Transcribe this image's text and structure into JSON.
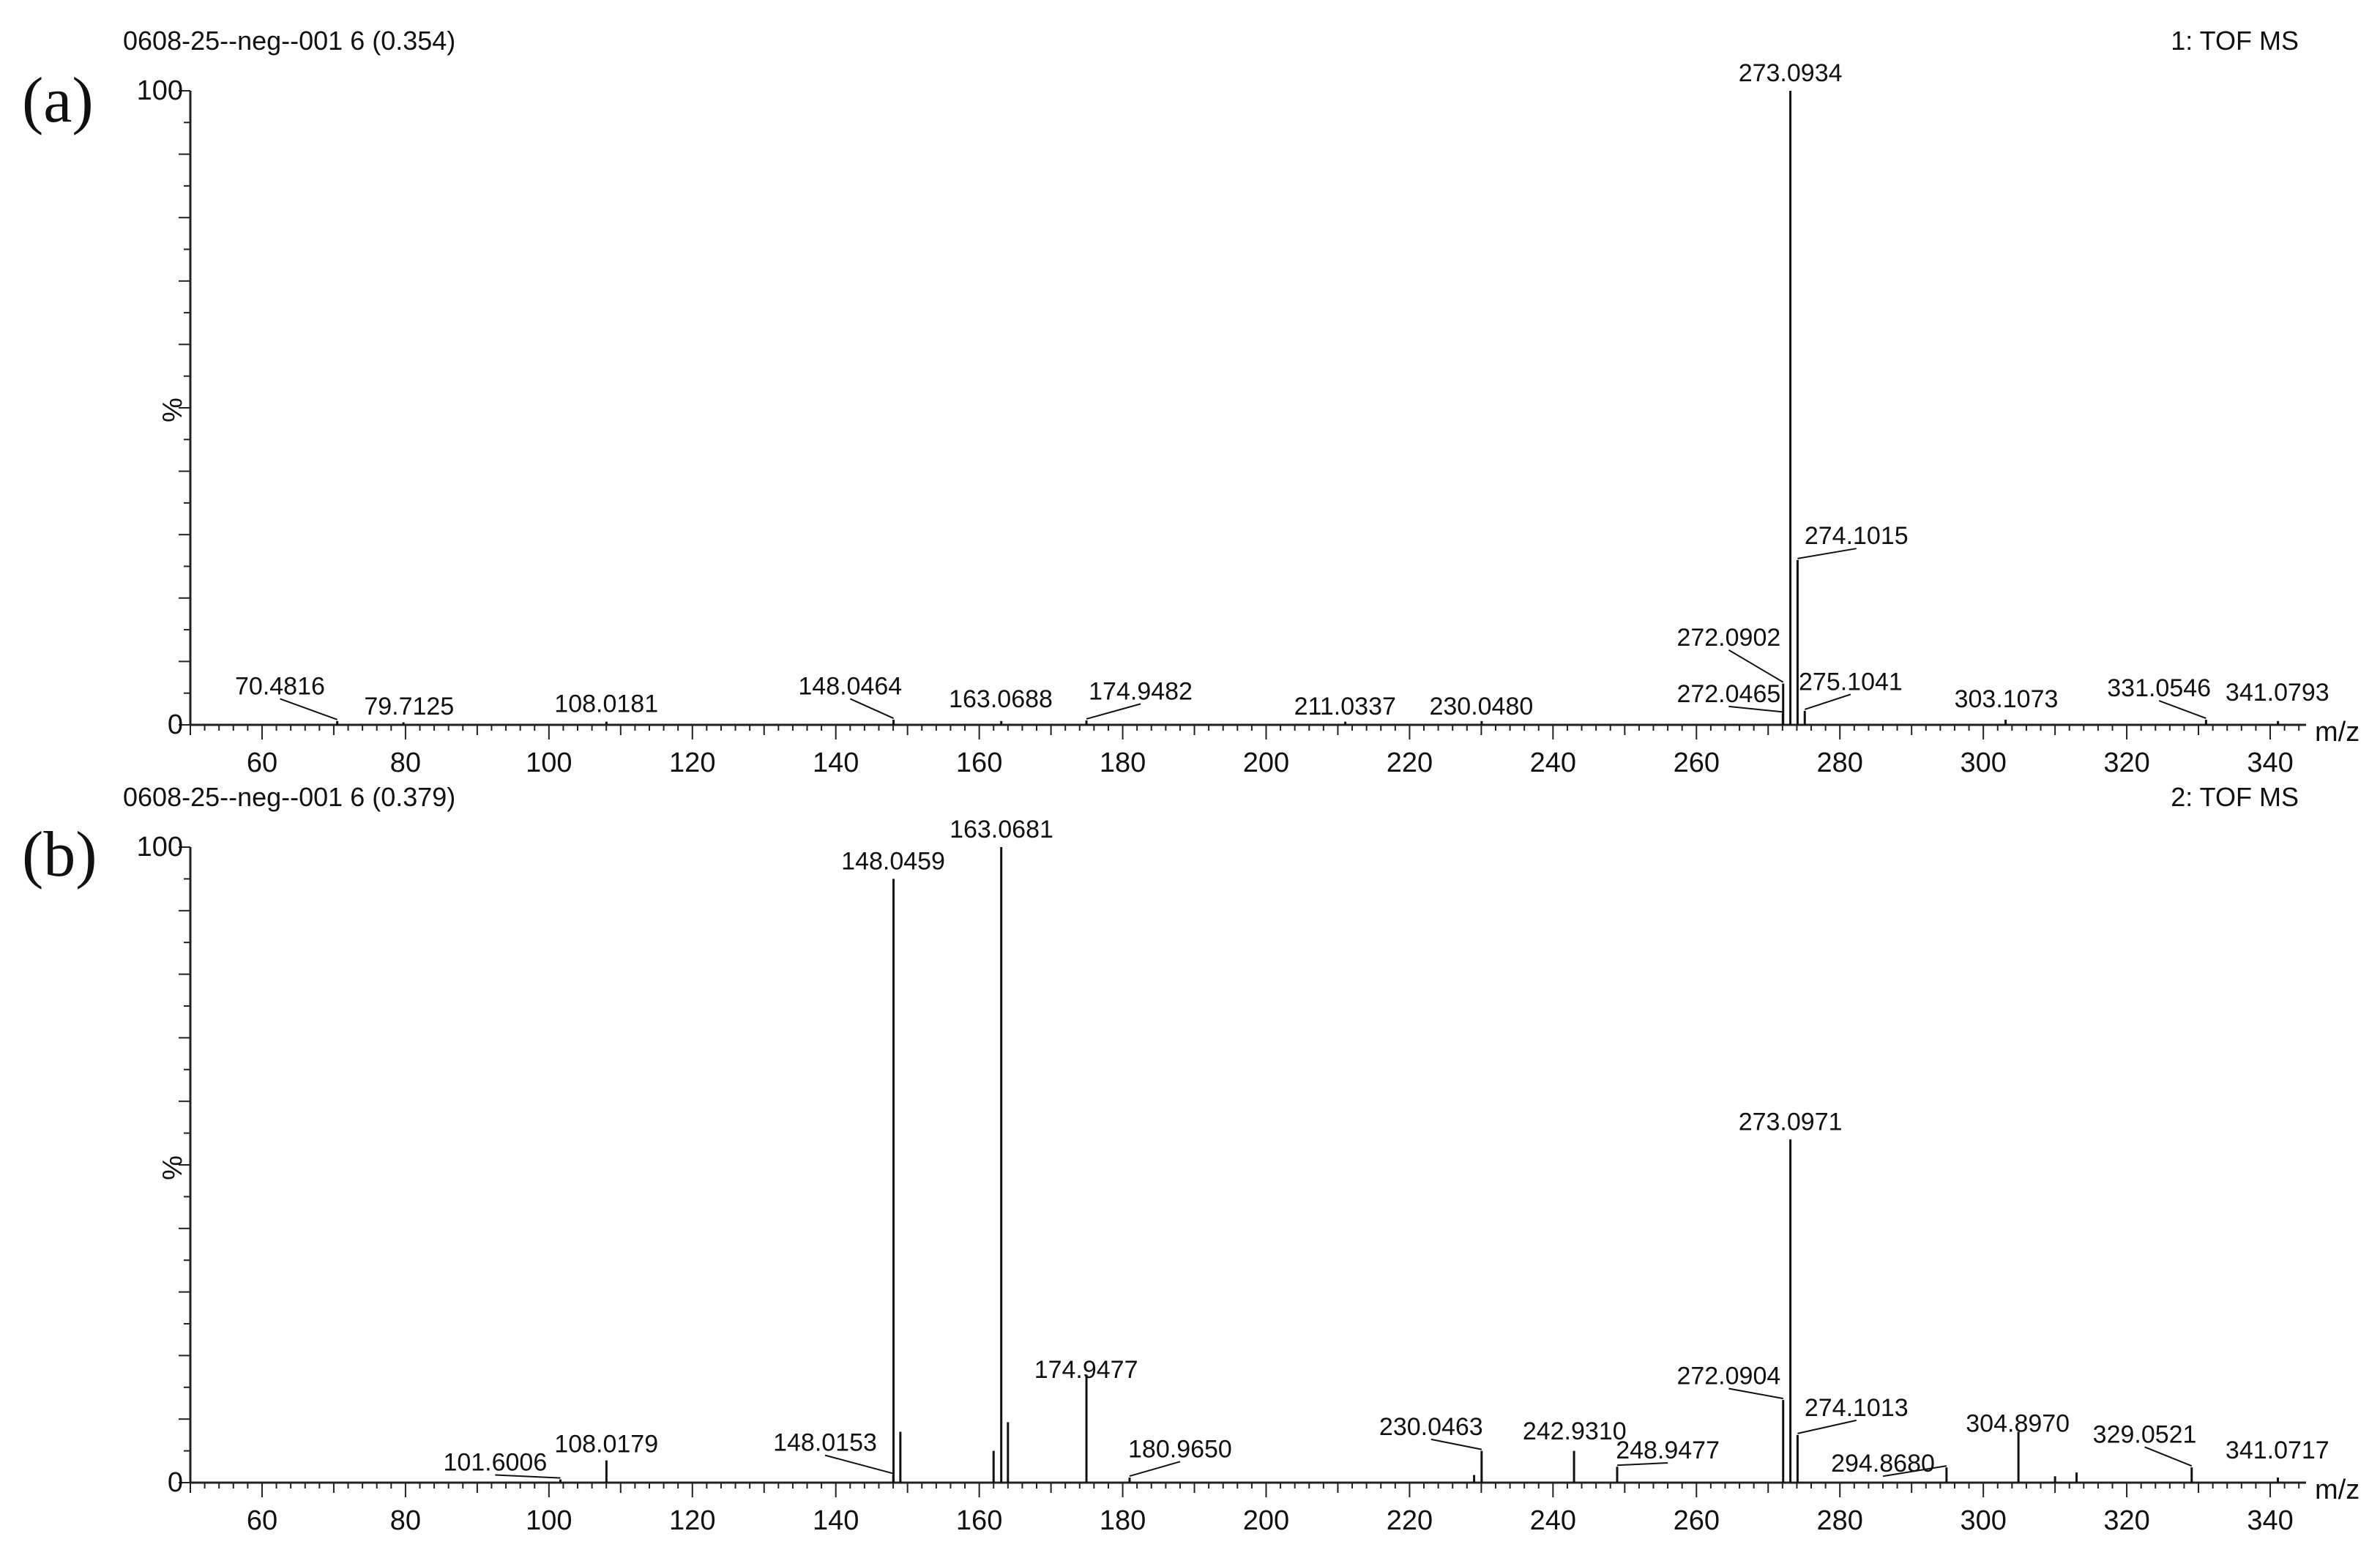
{
  "chart_data": [
    {
      "type": "bar",
      "panel_label": "(a)",
      "header_left": "0608-25--neg--001 6 (0.354)",
      "header_right": "1: TOF MS",
      "xlabel": "m/z",
      "ylabel": "%",
      "y_tick_labels": [
        "100",
        "0"
      ],
      "x_tick_labels": [
        "60",
        "80",
        "100",
        "120",
        "140",
        "160",
        "180",
        "200",
        "220",
        "240",
        "260",
        "280",
        "300",
        "320",
        "340"
      ],
      "xlim": [
        50,
        345
      ],
      "ylim": [
        0,
        100
      ],
      "grid": false,
      "peaks": [
        {
          "mz": 70.4816,
          "intensity": 0.6,
          "label": "70.4816",
          "label_mz": 62.5,
          "label_y": 4.8,
          "leader": true
        },
        {
          "mz": 79.7125,
          "intensity": 0.4,
          "label": "79.7125",
          "label_mz": 80.5,
          "label_y": 1.6,
          "leader": false
        },
        {
          "mz": 108.0181,
          "intensity": 0.5,
          "label": "108.0181",
          "label_mz": 108.0,
          "label_y": 2.0,
          "leader": false
        },
        {
          "mz": 148.0464,
          "intensity": 0.8,
          "label": "148.0464",
          "label_mz": 142.0,
          "label_y": 4.8,
          "leader": true
        },
        {
          "mz": 163.0688,
          "intensity": 0.6,
          "label": "163.0688",
          "label_mz": 163.0,
          "label_y": 2.8,
          "leader": false
        },
        {
          "mz": 174.9482,
          "intensity": 0.7,
          "label": "174.9482",
          "label_mz": 182.5,
          "label_y": 4.0,
          "leader": true
        },
        {
          "mz": 211.0337,
          "intensity": 0.5,
          "label": "211.0337",
          "label_mz": 211.0,
          "label_y": 1.6,
          "leader": false
        },
        {
          "mz": 230.048,
          "intensity": 0.6,
          "label": "230.0480",
          "label_mz": 230.0,
          "label_y": 1.6,
          "leader": false
        },
        {
          "mz": 272.0465,
          "intensity": 1.8,
          "label": "272.0465",
          "label_mz": 264.5,
          "label_y": 3.6,
          "leader": true
        },
        {
          "mz": 272.0902,
          "intensity": 6.5,
          "label": "272.0902",
          "label_mz": 264.5,
          "label_y": 12.5,
          "leader": true
        },
        {
          "mz": 273.0934,
          "intensity": 100,
          "label": "273.0934",
          "label_mz": 273.1,
          "label_y": 101.5,
          "leader": false
        },
        {
          "mz": 274.1015,
          "intensity": 26,
          "label": "274.1015",
          "label_mz": 282.3,
          "label_y": 28.5,
          "leader": true
        },
        {
          "mz": 275.1041,
          "intensity": 2.2,
          "label": "275.1041",
          "label_mz": 281.5,
          "label_y": 5.5,
          "leader": true
        },
        {
          "mz": 303.1073,
          "intensity": 0.8,
          "label": "303.1073",
          "label_mz": 303.2,
          "label_y": 2.8,
          "leader": false
        },
        {
          "mz": 331.0546,
          "intensity": 0.8,
          "label": "331.0546",
          "label_mz": 324.5,
          "label_y": 4.5,
          "leader": true
        },
        {
          "mz": 341.0793,
          "intensity": 0.6,
          "label": "341.0793",
          "label_mz": 341.0,
          "label_y": 3.8,
          "leader": false
        }
      ]
    },
    {
      "type": "bar",
      "panel_label": "(b)",
      "header_left": "0608-25--neg--001 6 (0.379)",
      "header_right": "2: TOF MS",
      "xlabel": "m/z",
      "ylabel": "%",
      "y_tick_labels": [
        "100",
        "0"
      ],
      "x_tick_labels": [
        "60",
        "80",
        "100",
        "120",
        "140",
        "160",
        "180",
        "200",
        "220",
        "240",
        "260",
        "280",
        "300",
        "320",
        "340"
      ],
      "xlim": [
        50,
        345
      ],
      "ylim": [
        0,
        100
      ],
      "grid": false,
      "peaks": [
        {
          "mz": 101.6006,
          "intensity": 0.5,
          "label": "101.6006",
          "label_mz": 92.5,
          "label_y": 1.9,
          "leader": true
        },
        {
          "mz": 108.0179,
          "intensity": 3.5,
          "label": "108.0179",
          "label_mz": 108.0,
          "label_y": 4.8,
          "leader": false
        },
        {
          "mz": 148.0153,
          "intensity": 1.2,
          "label": "148.0153",
          "label_mz": 138.5,
          "label_y": 5.0,
          "leader": true
        },
        {
          "mz": 148.0459,
          "intensity": 95,
          "label": "148.0459",
          "label_mz": 148.0,
          "label_y": 96.5,
          "leader": false
        },
        {
          "mz": 149.0,
          "intensity": 8,
          "label": "",
          "leader": false
        },
        {
          "mz": 162.0,
          "intensity": 5,
          "label": "",
          "leader": false
        },
        {
          "mz": 163.0681,
          "intensity": 100,
          "label": "163.0681",
          "label_mz": 163.1,
          "label_y": 101.5,
          "leader": false
        },
        {
          "mz": 164.0,
          "intensity": 9.5,
          "label": "",
          "leader": false
        },
        {
          "mz": 174.9477,
          "intensity": 17,
          "label": "174.9477",
          "label_mz": 174.9,
          "label_y": 16.5,
          "leader": false
        },
        {
          "mz": 180.965,
          "intensity": 0.8,
          "label": "180.9650",
          "label_mz": 188.0,
          "label_y": 4.0,
          "leader": true
        },
        {
          "mz": 229.0,
          "intensity": 1.2,
          "label": "",
          "leader": false
        },
        {
          "mz": 230.0463,
          "intensity": 5,
          "label": "230.0463",
          "label_mz": 223.0,
          "label_y": 7.5,
          "leader": true
        },
        {
          "mz": 242.931,
          "intensity": 5,
          "label": "242.9310",
          "label_mz": 243.0,
          "label_y": 6.8,
          "leader": false
        },
        {
          "mz": 248.9477,
          "intensity": 2.5,
          "label": "248.9477",
          "label_mz": 256.0,
          "label_y": 3.8,
          "leader": true
        },
        {
          "mz": 272.0904,
          "intensity": 13,
          "label": "272.0904",
          "label_mz": 264.5,
          "label_y": 15.5,
          "leader": true
        },
        {
          "mz": 273.0971,
          "intensity": 54,
          "label": "273.0971",
          "label_mz": 273.1,
          "label_y": 55.5,
          "leader": false
        },
        {
          "mz": 274.1013,
          "intensity": 7.5,
          "label": "274.1013",
          "label_mz": 282.3,
          "label_y": 10.5,
          "leader": true
        },
        {
          "mz": 294.868,
          "intensity": 2.4,
          "label": "294.8680",
          "label_mz": 286.0,
          "label_y": 1.7,
          "leader": true
        },
        {
          "mz": 304.897,
          "intensity": 8,
          "label": "304.8970",
          "label_mz": 304.8,
          "label_y": 8.0,
          "leader": false
        },
        {
          "mz": 310.0,
          "intensity": 1.0,
          "label": "",
          "leader": false
        },
        {
          "mz": 313.0,
          "intensity": 1.6,
          "label": "",
          "leader": false
        },
        {
          "mz": 329.0521,
          "intensity": 2.4,
          "label": "329.0521",
          "label_mz": 322.5,
          "label_y": 6.3,
          "leader": true
        },
        {
          "mz": 341.0717,
          "intensity": 0.8,
          "label": "341.0717",
          "label_mz": 341.0,
          "label_y": 3.8,
          "leader": false
        }
      ]
    }
  ]
}
